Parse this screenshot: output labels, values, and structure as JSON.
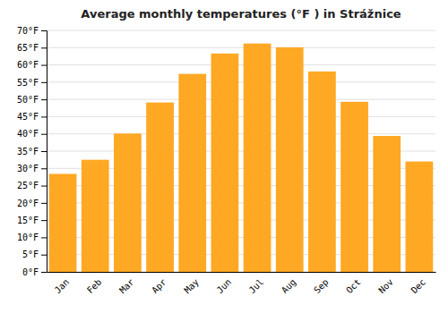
{
  "chart_data": {
    "type": "bar",
    "title": "Average monthly temperatures (°F ) in Strážnice",
    "categories": [
      "Jan",
      "Feb",
      "Mar",
      "Apr",
      "May",
      "Jun",
      "Jul",
      "Aug",
      "Sep",
      "Oct",
      "Nov",
      "Dec"
    ],
    "values": [
      28.4,
      32.5,
      40.1,
      49.1,
      57.4,
      63.3,
      66.2,
      65.1,
      58.1,
      49.3,
      39.4,
      32.0
    ],
    "color": "#FFA824",
    "ylim": [
      0,
      70
    ],
    "yticks": [
      {
        "value": 0,
        "label": "0°F"
      },
      {
        "value": 5,
        "label": "5°F"
      },
      {
        "value": 10,
        "label": "10°F"
      },
      {
        "value": 15,
        "label": "15°F"
      },
      {
        "value": 20,
        "label": "20°F"
      },
      {
        "value": 25,
        "label": "25°F"
      },
      {
        "value": 30,
        "label": "30°F"
      },
      {
        "value": 35,
        "label": "35°F"
      },
      {
        "value": 40,
        "label": "40°F"
      },
      {
        "value": 45,
        "label": "45°F"
      },
      {
        "value": 50,
        "label": "50°F"
      },
      {
        "value": 55,
        "label": "55°F"
      },
      {
        "value": 60,
        "label": "60°F"
      },
      {
        "value": 65,
        "label": "65°F"
      },
      {
        "value": 70,
        "label": "70°F"
      }
    ],
    "grid": true
  }
}
